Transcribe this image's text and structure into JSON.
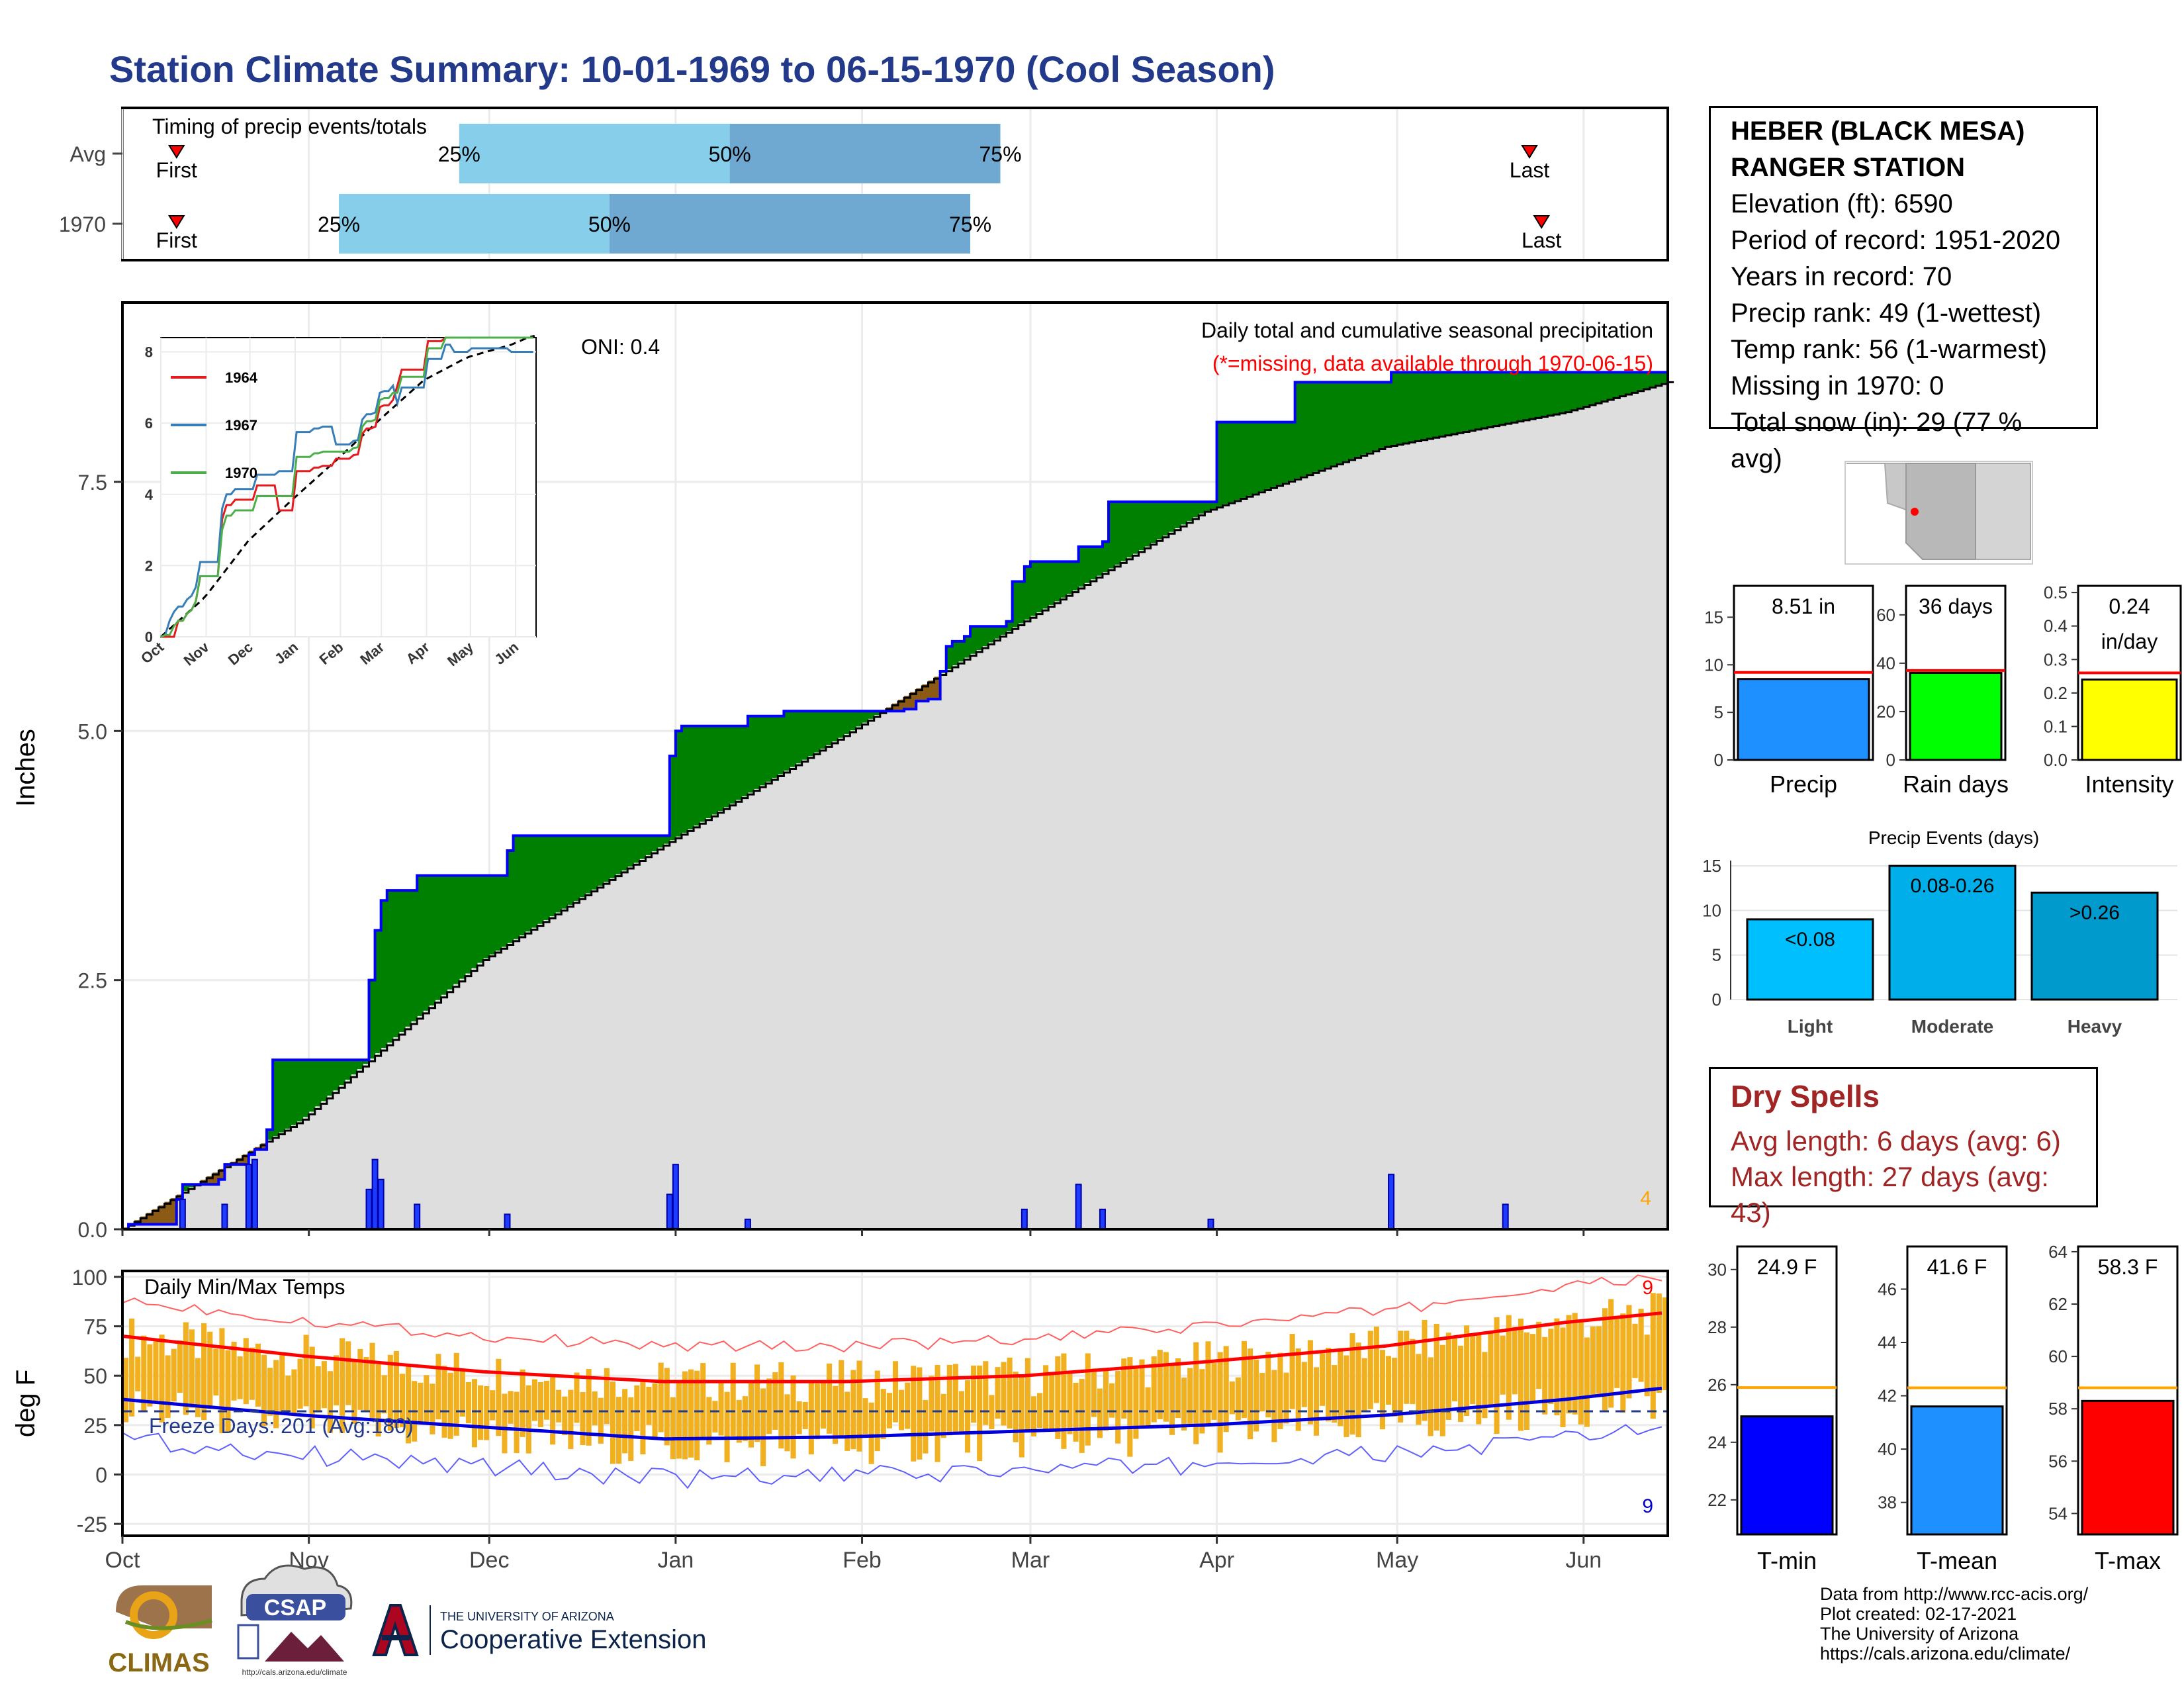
{
  "title": "Station Climate Summary: 10-01-1969 to 06-15-1970 (Cool Season)",
  "timing": {
    "title": "Timing of precip events/totals",
    "rows": [
      {
        "label": "Avg",
        "first": "First",
        "last": "Last",
        "p25": "25%",
        "p50": "50%",
        "p75": "75%",
        "first_day": 9,
        "last_day": 234,
        "q25_day": 56,
        "q50_day": 101,
        "q75_day": 146
      },
      {
        "label": "1970",
        "first": "First",
        "last": "Last",
        "p25": "25%",
        "p50": "50%",
        "p75": "75%",
        "first_day": 9,
        "last_day": 236,
        "q25_day": 36,
        "q50_day": 81,
        "q75_day": 141
      }
    ]
  },
  "precip_panel": {
    "ylabel": "Inches",
    "yticks": [
      "0.0",
      "2.5",
      "5.0",
      "7.5"
    ],
    "oni": "ONI: 0.4",
    "caption": "Daily total and cumulative seasonal precipitation",
    "missing_note": "(*=missing, data available through 1970-06-15)",
    "corner_count": "4"
  },
  "inset": {
    "yticks": [
      "0",
      "2",
      "4",
      "6",
      "8"
    ],
    "xticks": [
      "Oct",
      "Nov",
      "Dec",
      "Jan",
      "Feb",
      "Mar",
      "Apr",
      "May",
      "Jun"
    ],
    "legend": [
      {
        "name": "1964",
        "color": "#e41a1c"
      },
      {
        "name": "1967",
        "color": "#377eb8"
      },
      {
        "name": "1970",
        "color": "#4daf4a"
      }
    ]
  },
  "temp_panel": {
    "ylabel": "deg F",
    "title": "Daily Min/Max Temps",
    "yticks": [
      "100",
      "75",
      "50",
      "25",
      "0",
      "-25"
    ],
    "freeze": "Freeze Days: 201 (Avg:180)",
    "count_hot": "9",
    "count_cold": "9"
  },
  "month_axis": [
    "Oct",
    "Nov",
    "Dec",
    "Jan",
    "Feb",
    "Mar",
    "Apr",
    "May",
    "Jun"
  ],
  "station": {
    "name_line1": "HEBER (BLACK MESA)",
    "name_line2": "RANGER STATION",
    "elevation": "Elevation (ft): 6590",
    "period": "Period of record: 1951-2020",
    "years": "Years in record: 70",
    "precip_rank": "Precip rank: 49 (1-wettest)",
    "temp_rank": "Temp rank: 56 (1-warmest)",
    "missing": "Missing in 1970: 0",
    "snow": "Total snow (in): 29 (77 % avg)"
  },
  "summary_bars": {
    "precip": {
      "label": "Precip",
      "value_text": "8.51 in",
      "value": 8.51,
      "avg": 9.2,
      "yticks": [
        "0",
        "5",
        "10",
        "15"
      ],
      "color": "#1e90ff"
    },
    "raindays": {
      "label": "Rain days",
      "value_text": "36 days",
      "value": 36,
      "avg": 37,
      "yticks": [
        "0",
        "20",
        "40",
        "60"
      ],
      "color": "#00ff00"
    },
    "intensity": {
      "label": "Intensity",
      "value_text1": "0.24",
      "value_text2": "in/day",
      "value": 0.24,
      "avg": 0.26,
      "yticks": [
        "0.0",
        "0.1",
        "0.2",
        "0.3",
        "0.4",
        "0.5"
      ],
      "color": "#ffff00"
    }
  },
  "events": {
    "title": "Precip Events (days)",
    "yticks": [
      "0",
      "5",
      "10",
      "15"
    ],
    "bars": [
      {
        "label": "Light",
        "range": "<0.08",
        "value": 9,
        "color": "#00bfff"
      },
      {
        "label": "Moderate",
        "range": "0.08-0.26",
        "value": 15,
        "color": "#00aeea"
      },
      {
        "label": "Heavy",
        "range": ">0.26",
        "value": 12,
        "color": "#009acd"
      }
    ]
  },
  "dry_spells": {
    "title": "Dry Spells",
    "avg": "Avg length: 6 days (avg: 6)",
    "max": "Max length: 27 days (avg: 43)"
  },
  "temp_bars": {
    "tmin": {
      "label": "T-min",
      "value_text": "24.9 F",
      "value": 24.9,
      "avg": 25.9,
      "yticks": [
        "22",
        "24",
        "26",
        "28",
        "30"
      ],
      "color": "#0000ff"
    },
    "tmean": {
      "label": "T-mean",
      "value_text": "41.6 F",
      "value": 41.6,
      "avg": 42.3,
      "yticks": [
        "38",
        "40",
        "42",
        "44",
        "46"
      ],
      "color": "#1e90ff"
    },
    "tmax": {
      "label": "T-max",
      "value_text": "58.3 F",
      "value": 58.3,
      "avg": 58.8,
      "yticks": [
        "54",
        "56",
        "58",
        "60",
        "62",
        "64"
      ],
      "color": "#ff0000"
    }
  },
  "credits": [
    "Data from http://www.rcc-acis.org/",
    "Plot created: 02-17-2021",
    "The University of Arizona",
    "https://cals.arizona.edu/climate/"
  ],
  "logos": {
    "climas": "CLIMAS",
    "csap": "CSAP",
    "csap_url": "http://cals.arizona.edu/climate",
    "ua_small": "THE UNIVERSITY OF ARIZONA",
    "ua_big": "Cooperative Extension"
  },
  "chart_data": [
    {
      "type": "area",
      "title": "Daily total and cumulative seasonal precipitation",
      "ylabel": "Inches",
      "ylim": [
        0,
        9.3
      ],
      "x_unit": "day of season starting 1969-10-01",
      "series": [
        {
          "name": "1970",
          "x": [
            0,
            1,
            9,
            10,
            16,
            17,
            21,
            22,
            24,
            25,
            40,
            41,
            42,
            43,
            44,
            49,
            50,
            63,
            64,
            65,
            75,
            76,
            90,
            91,
            92,
            93,
            94,
            95,
            103,
            104,
            109,
            110,
            112,
            113,
            130,
            132,
            134,
            136,
            137,
            138,
            140,
            141,
            147,
            148,
            150,
            151,
            153,
            158,
            159,
            163,
            164,
            181,
            182,
            194,
            195,
            198,
            210,
            211,
            229,
            230,
            257
          ],
          "y": [
            0,
            0.05,
            0.3,
            0.45,
            0.5,
            0.65,
            0.75,
            0.8,
            1.0,
            1.7,
            1.7,
            2.5,
            3.0,
            3.3,
            3.4,
            3.55,
            3.55,
            3.55,
            3.8,
            3.95,
            3.95,
            3.95,
            3.95,
            4.75,
            5.0,
            5.05,
            5.05,
            5.05,
            5.05,
            5.15,
            5.15,
            5.2,
            5.2,
            5.2,
            5.22,
            5.3,
            5.32,
            5.6,
            5.85,
            5.9,
            5.95,
            6.05,
            6.1,
            6.5,
            6.65,
            6.7,
            6.7,
            6.7,
            6.85,
            6.9,
            7.3,
            7.3,
            8.1,
            8.1,
            8.5,
            8.5,
            8.5,
            8.6,
            8.6,
            8.6,
            8.6
          ]
        },
        {
          "name": "Avg cumulative",
          "x": [
            0,
            30,
            60,
            90,
            120,
            150,
            180,
            210,
            240,
            257
          ],
          "y": [
            0,
            1.1,
            2.7,
            3.85,
            4.95,
            6.1,
            7.2,
            7.85,
            8.2,
            8.5
          ]
        }
      ],
      "daily_bars": [
        {
          "day": 10,
          "value": 0.3
        },
        {
          "day": 17,
          "value": 0.25
        },
        {
          "day": 21,
          "value": 0.65
        },
        {
          "day": 22,
          "value": 0.7
        },
        {
          "day": 41,
          "value": 0.4
        },
        {
          "day": 42,
          "value": 0.7
        },
        {
          "day": 43,
          "value": 0.5
        },
        {
          "day": 49,
          "value": 0.25
        },
        {
          "day": 64,
          "value": 0.15
        },
        {
          "day": 91,
          "value": 0.35
        },
        {
          "day": 92,
          "value": 0.65
        },
        {
          "day": 104,
          "value": 0.1
        },
        {
          "day": 150,
          "value": 0.2
        },
        {
          "day": 159,
          "value": 0.45
        },
        {
          "day": 163,
          "value": 0.2
        },
        {
          "day": 181,
          "value": 0.1
        },
        {
          "day": 211,
          "value": 0.55
        },
        {
          "day": 230,
          "value": 0.25
        }
      ]
    },
    {
      "type": "line",
      "title": "Daily Min/Max Temps",
      "ylabel": "deg F",
      "ylim": [
        -30,
        102
      ],
      "series": [
        {
          "name": "Avg max",
          "x": [
            0,
            30,
            60,
            90,
            120,
            150,
            180,
            210,
            240,
            257
          ],
          "y": [
            70,
            60,
            52,
            47,
            47,
            50,
            57,
            65,
            77,
            82
          ]
        },
        {
          "name": "Avg min",
          "x": [
            0,
            30,
            60,
            90,
            120,
            150,
            180,
            210,
            240,
            257
          ],
          "y": [
            38,
            30,
            24,
            18,
            19,
            22,
            25,
            30,
            38,
            44
          ]
        },
        {
          "name": "Freeze line",
          "x": [
            0,
            257
          ],
          "y": [
            32,
            32
          ]
        }
      ]
    }
  ]
}
